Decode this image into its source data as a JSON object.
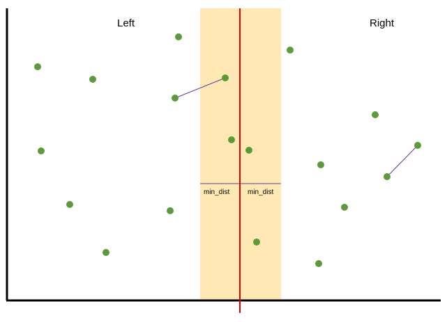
{
  "labels": {
    "left": "Left",
    "right": "Right",
    "min_dist_left": "min_dist",
    "min_dist_right": "min_dist"
  },
  "colors": {
    "strip": "#FFE8B3",
    "divider": "#E00000",
    "point": "#5B9B3A",
    "connector": "#6B2FA0",
    "axis": "#000000"
  }
}
